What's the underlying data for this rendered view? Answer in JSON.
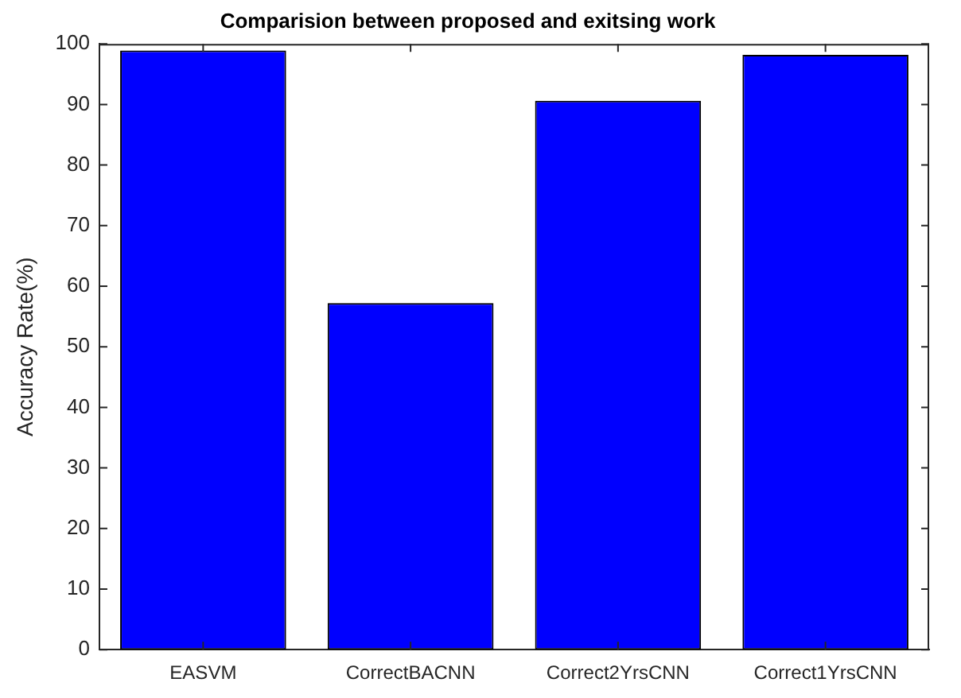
{
  "chart_data": {
    "type": "bar",
    "title": "Comparision between proposed and exitsing work",
    "ylabel": "Accuracy Rate(%)",
    "categories": [
      "EASVM",
      "CorrectBACNN",
      "Correct2YrsCNN",
      "Correct1YrsCNN"
    ],
    "values": [
      98.9,
      57.2,
      90.6,
      98.2
    ],
    "color": "#0000ff",
    "ylim": [
      0,
      100
    ],
    "yticks": [
      0,
      10,
      20,
      30,
      40,
      50,
      60,
      70,
      80,
      90,
      100
    ],
    "grid": false,
    "legend": false
  }
}
